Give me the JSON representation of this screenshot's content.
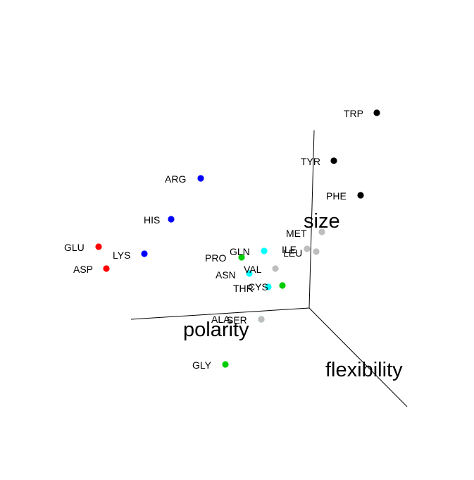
{
  "chart_data": {
    "type": "scatter",
    "title": "",
    "axes": {
      "polarity": "polarity",
      "size": "size",
      "flexibility": "flexibility"
    },
    "grid": false,
    "legend": "none",
    "groups": [
      {
        "color": "#000000"
      },
      {
        "color": "#0000ff"
      },
      {
        "color": "#ff0000"
      },
      {
        "color": "#00cd00"
      },
      {
        "color": "#00ffff"
      },
      {
        "color": "#bebebe"
      }
    ],
    "points": [
      {
        "label": "TRP",
        "group": 0
      },
      {
        "label": "TYR",
        "group": 0
      },
      {
        "label": "PHE",
        "group": 0
      },
      {
        "label": "ARG",
        "group": 1
      },
      {
        "label": "HIS",
        "group": 1
      },
      {
        "label": "LYS",
        "group": 1
      },
      {
        "label": "GLU",
        "group": 2
      },
      {
        "label": "ASP",
        "group": 2
      },
      {
        "label": "PRO",
        "group": 3
      },
      {
        "label": "CYS",
        "group": 3
      },
      {
        "label": "GLY",
        "group": 3
      },
      {
        "label": "GLN",
        "group": 4
      },
      {
        "label": "ASN",
        "group": 4
      },
      {
        "label": "THR",
        "group": 4
      },
      {
        "label": "SER",
        "group": 4
      },
      {
        "label": "MET",
        "group": 5
      },
      {
        "label": "ILE",
        "group": 5
      },
      {
        "label": "LEU",
        "group": 5
      },
      {
        "label": "VAL",
        "group": 5
      },
      {
        "label": "ALA",
        "group": 5
      }
    ]
  }
}
